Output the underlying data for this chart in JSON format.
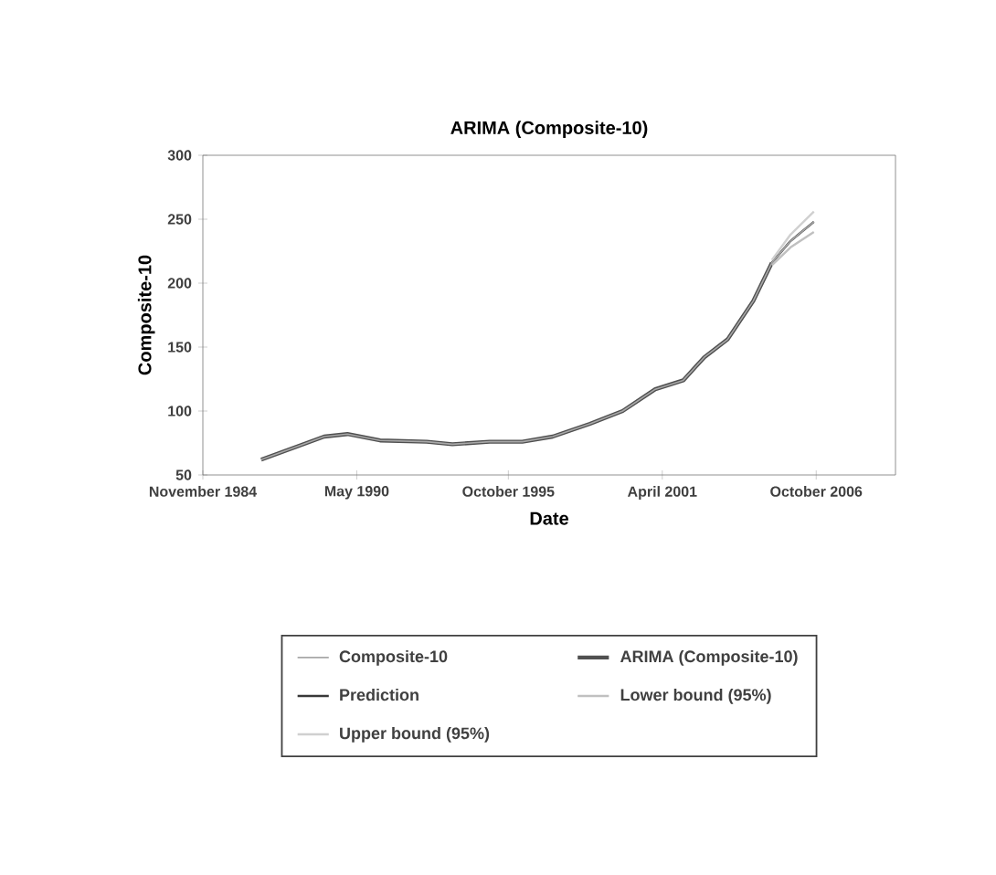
{
  "chart_data": {
    "type": "line",
    "title": "ARIMA (Composite-10)",
    "xlabel": "Date",
    "ylabel": "Composite-10",
    "xlim": [
      "1984-11",
      "2009-08"
    ],
    "ylim": [
      50,
      300
    ],
    "yticks": [
      50,
      100,
      150,
      200,
      250,
      300
    ],
    "xticks": [
      {
        "value": "1984-11",
        "label": "November 1984"
      },
      {
        "value": "1990-05",
        "label": "May 1990"
      },
      {
        "value": "1995-10",
        "label": "October 1995"
      },
      {
        "value": "2001-04",
        "label": "April 2001"
      },
      {
        "value": "2006-10",
        "label": "October 2006"
      }
    ],
    "legend": "bottom",
    "grid": false,
    "series": [
      {
        "name": "Composite-10",
        "color": "#a8a8a8",
        "x": [
          "1986-12",
          "1988-03",
          "1989-03",
          "1990-01",
          "1991-03",
          "1992-11",
          "1993-10",
          "1995-02",
          "1996-04",
          "1997-05",
          "1998-09",
          "1999-11",
          "2001-01",
          "2002-01",
          "2002-10",
          "2003-08",
          "2004-07",
          "2005-03",
          "2005-11",
          "2006-09"
        ],
        "values": [
          62,
          72,
          80,
          82,
          77,
          76,
          74,
          76,
          76,
          80,
          90,
          100,
          117,
          124,
          142,
          156,
          186,
          216,
          233,
          248
        ]
      },
      {
        "name": "ARIMA (Composite-10)",
        "color": "#505050",
        "x": [
          "1986-12",
          "1988-03",
          "1989-03",
          "1990-01",
          "1991-03",
          "1992-11",
          "1993-10",
          "1995-02",
          "1996-04",
          "1997-05",
          "1998-09",
          "1999-11",
          "2001-01",
          "2002-01",
          "2002-10",
          "2003-08",
          "2004-07",
          "2005-03"
        ],
        "values": [
          62,
          72,
          80,
          82,
          77,
          76,
          74,
          76,
          76,
          80,
          90,
          100,
          117,
          124,
          142,
          156,
          186,
          216
        ]
      },
      {
        "name": "Prediction",
        "color": "#383838",
        "x": [
          "2005-03",
          "2005-11",
          "2006-09"
        ],
        "values": [
          216,
          233,
          248
        ]
      },
      {
        "name": "Lower bound (95%)",
        "color": "#c0c0c0",
        "x": [
          "2005-03",
          "2005-11",
          "2006-09"
        ],
        "values": [
          214,
          228,
          240
        ]
      },
      {
        "name": "Upper bound (95%)",
        "color": "#d0d0d0",
        "x": [
          "2005-03",
          "2005-11",
          "2006-09"
        ],
        "values": [
          218,
          238,
          256
        ]
      }
    ]
  }
}
